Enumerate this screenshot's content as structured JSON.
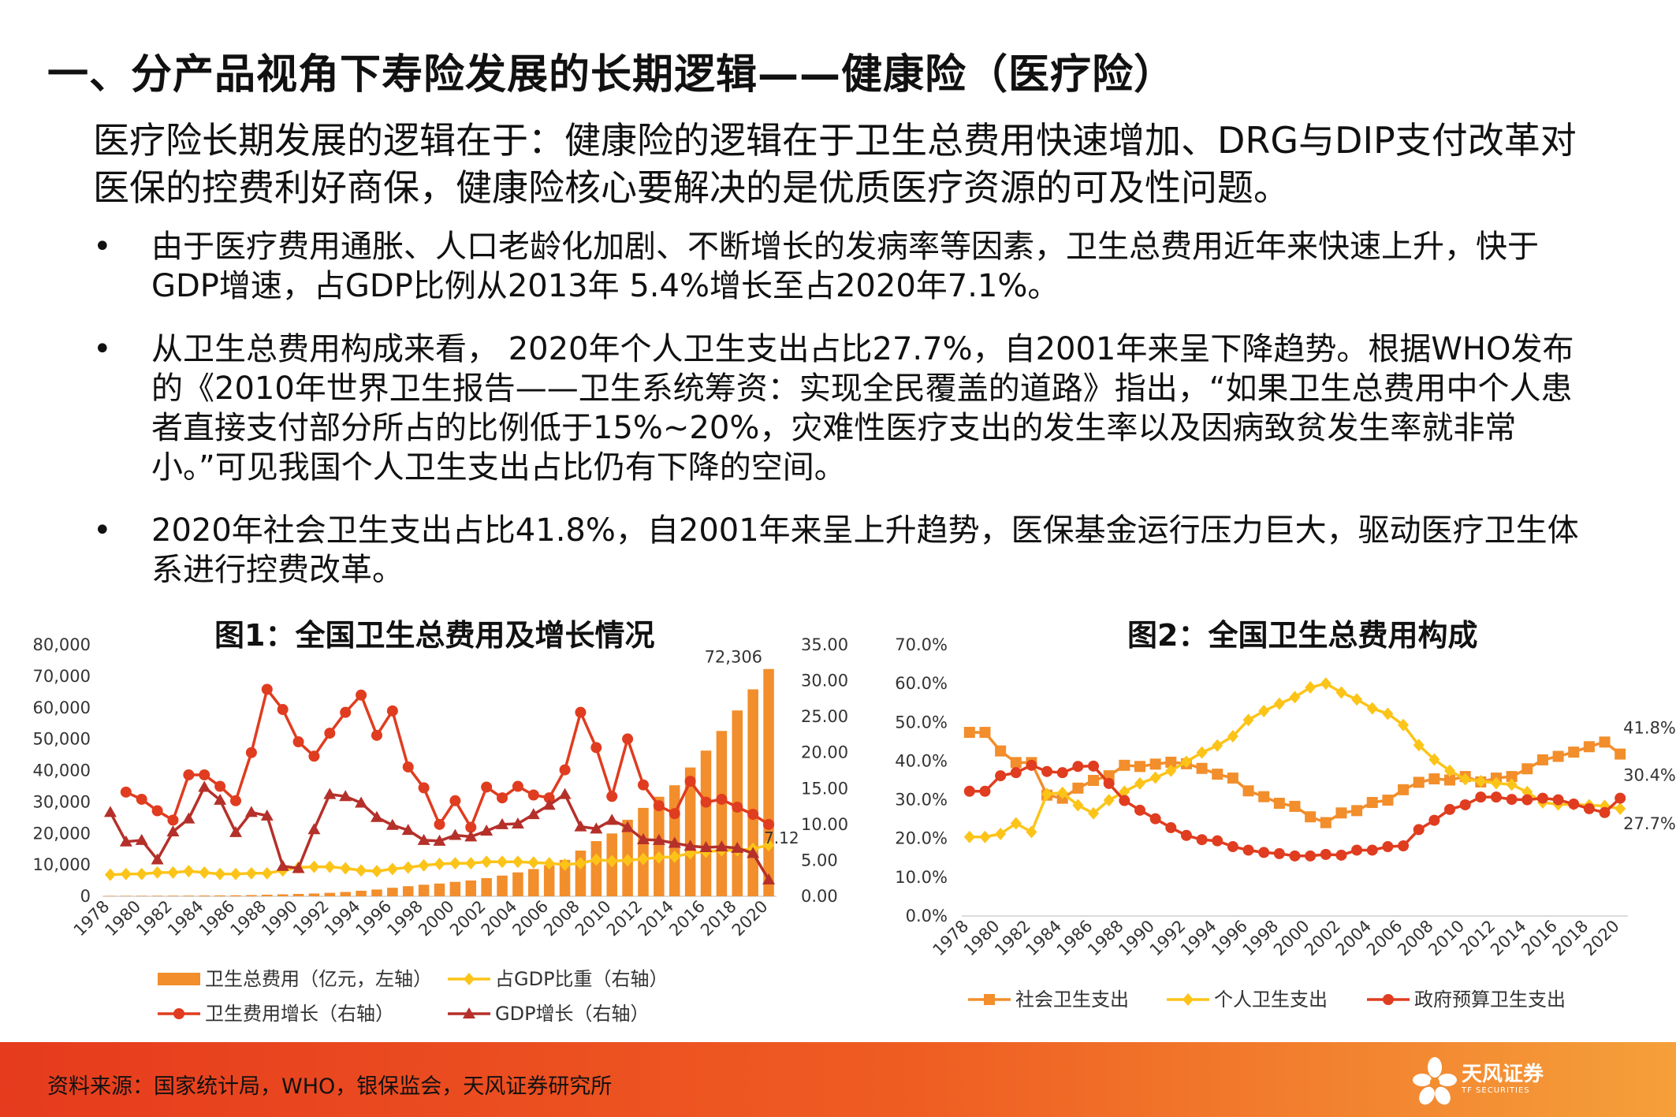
{
  "page": {
    "title": "一、分产品视角下寿险发展的长期逻辑——健康险（医疗险）",
    "lead": "医疗险长期发展的逻辑在于：健康险的逻辑在于卫生总费用快速增加、DRG与DIP支付改革对医保的控费利好商保，健康险核心要解决的是优质医疗资源的可及性问题。",
    "bullet_symbol": "•",
    "bullets": [
      "由于医疗费用通胀、人口老龄化加剧、不断增长的发病率等因素，卫生总费用近年来快速上升，快于GDP增速，占GDP比例从2013年 5.4%增长至占2020年7.1%。",
      "从卫生总费用构成来看， 2020年个人卫生支出占比27.7%，自2001年来呈下降趋势。根据WHO发布的《2010年世界卫生报告——卫生系统筹资：实现全民覆盖的道路》指出，“如果卫生总费用中个人患者直接支付部分所占的比例低于15%~20%，灾难性医疗支出的发生率以及因病致贫发生率就非常小。”可见我国个人卫生支出占比仍有下降的空间。",
      "2020年社会卫生支出占比41.8%，自2001年来呈上升趋势，医保基金运行压力巨大，驱动医疗卫生体系进行控费改革。"
    ]
  },
  "footer": {
    "source": "资料来源：国家统计局，WHO，银保监会，天风证券研究所",
    "brand_name": "天风证券",
    "brand_sub": "TF SECURITIES"
  },
  "colors": {
    "orange": "#f28e2b",
    "yellow": "#fcc419",
    "red": "#e03c1f",
    "darkred": "#b5302a",
    "footer": "#e84a1f"
  },
  "chart_data": [
    {
      "type": "bar",
      "title": "图1：全国卫生总费用及增长情况",
      "x": [
        1978,
        1979,
        1980,
        1981,
        1982,
        1983,
        1984,
        1985,
        1986,
        1987,
        1988,
        1989,
        1990,
        1991,
        1992,
        1993,
        1994,
        1995,
        1996,
        1997,
        1998,
        1999,
        2000,
        2001,
        2002,
        2003,
        2004,
        2005,
        2006,
        2007,
        2008,
        2009,
        2010,
        2011,
        2012,
        2013,
        2014,
        2015,
        2016,
        2017,
        2018,
        2019,
        2020
      ],
      "x_tick_labels": [
        "1978",
        "1980",
        "1982",
        "1984",
        "1986",
        "1988",
        "1990",
        "1992",
        "1994",
        "1996",
        "1998",
        "2000",
        "2002",
        "2004",
        "2006",
        "2008",
        "2010",
        "2012",
        "2014",
        "2016",
        "2018",
        "2020"
      ],
      "ylim_left": [
        0,
        80000
      ],
      "yticks_left": [
        "80,000",
        "70,000",
        "60,000",
        "50,000",
        "40,000",
        "30,000",
        "20,000",
        "10,000",
        "0"
      ],
      "ylim_right": [
        0,
        35
      ],
      "yticks_right": [
        "35.00",
        "30.00",
        "25.00",
        "20.00",
        "15.00",
        "10.00",
        "5.00",
        "0.00"
      ],
      "series": [
        {
          "name": "卫生总费用（亿元，左轴）",
          "type": "bar",
          "axis": "left",
          "color": "#f28e2b",
          "values": [
            110,
            126,
            143,
            160,
            177,
            207,
            242,
            279,
            316,
            379,
            488,
            615,
            747,
            893,
            1096,
            1377,
            1761,
            2155,
            2710,
            3197,
            3679,
            4048,
            4587,
            5025,
            5790,
            6584,
            7590,
            8660,
            9843,
            11574,
            14535,
            17542,
            19980,
            24346,
            28119,
            31669,
            35312,
            40975,
            46345,
            52598,
            59122,
            65841,
            72306
          ]
        },
        {
          "name": "占GDP比重（右轴）",
          "type": "line",
          "axis": "right",
          "color": "#fcc419",
          "marker": "diamond",
          "values": [
            3.0,
            3.1,
            3.1,
            3.3,
            3.3,
            3.5,
            3.3,
            3.1,
            3.1,
            3.2,
            3.2,
            3.6,
            4.0,
            4.1,
            4.1,
            3.9,
            3.6,
            3.5,
            3.8,
            4.0,
            4.3,
            4.5,
            4.6,
            4.6,
            4.8,
            4.8,
            4.8,
            4.7,
            4.6,
            4.4,
            4.6,
            5.1,
            4.9,
            5.0,
            5.2,
            5.4,
            5.5,
            6.0,
            6.2,
            6.4,
            6.4,
            6.6,
            7.12
          ]
        },
        {
          "name": "卫生费用增长（右轴）",
          "type": "line",
          "axis": "right",
          "color": "#e03c1f",
          "marker": "circle",
          "values": [
            null,
            14.5,
            13.5,
            11.9,
            10.6,
            16.9,
            16.9,
            15.3,
            13.3,
            20.0,
            28.8,
            26.0,
            21.5,
            19.5,
            22.7,
            25.6,
            28.0,
            22.4,
            25.8,
            18.0,
            15.1,
            10.0,
            13.3,
            9.6,
            15.2,
            13.7,
            15.3,
            14.1,
            13.7,
            17.6,
            25.6,
            20.7,
            13.9,
            21.9,
            15.5,
            12.6,
            11.5,
            16.0,
            13.1,
            13.5,
            12.4,
            11.4,
            10.0
          ]
        },
        {
          "name": "GDP增长（右轴）",
          "type": "line",
          "axis": "right",
          "color": "#b5302a",
          "marker": "triangle",
          "values": [
            11.7,
            7.6,
            7.8,
            5.1,
            9.0,
            10.8,
            15.2,
            13.4,
            8.9,
            11.7,
            11.2,
            4.2,
            3.9,
            9.3,
            14.2,
            13.9,
            13.0,
            11.0,
            9.9,
            9.2,
            7.8,
            7.7,
            8.5,
            8.3,
            9.1,
            10.0,
            10.1,
            11.4,
            12.7,
            14.2,
            9.7,
            9.4,
            10.6,
            9.6,
            7.9,
            7.8,
            7.4,
            7.0,
            6.8,
            6.9,
            6.7,
            6.0,
            2.3
          ]
        }
      ],
      "annotations": [
        {
          "text": "72,306",
          "x": 2020,
          "series": 0
        },
        {
          "text": "7.12",
          "x": 2020,
          "series": 1
        }
      ],
      "legend_position": "bottom"
    },
    {
      "type": "line",
      "title": "图2：全国卫生总费用构成",
      "x": [
        1978,
        1979,
        1980,
        1981,
        1982,
        1983,
        1984,
        1985,
        1986,
        1987,
        1988,
        1989,
        1990,
        1991,
        1992,
        1993,
        1994,
        1995,
        1996,
        1997,
        1998,
        1999,
        2000,
        2001,
        2002,
        2003,
        2004,
        2005,
        2006,
        2007,
        2008,
        2009,
        2010,
        2011,
        2012,
        2013,
        2014,
        2015,
        2016,
        2017,
        2018,
        2019,
        2020
      ],
      "x_tick_labels": [
        "1978",
        "1980",
        "1982",
        "1984",
        "1986",
        "1988",
        "1990",
        "1992",
        "1994",
        "1996",
        "1998",
        "2000",
        "2002",
        "2004",
        "2006",
        "2008",
        "2010",
        "2012",
        "2014",
        "2016",
        "2018",
        "2020"
      ],
      "ylim": [
        0,
        0.7
      ],
      "yticks": [
        "70.0%",
        "60.0%",
        "50.0%",
        "40.0%",
        "30.0%",
        "20.0%",
        "10.0%",
        "0.0%"
      ],
      "series": [
        {
          "name": "社会卫生支出",
          "color": "#f28e2b",
          "marker": "square",
          "values": [
            47.4,
            47.4,
            42.6,
            39.6,
            39.6,
            31.2,
            30.4,
            33.0,
            35.0,
            36.2,
            38.9,
            38.6,
            39.2,
            39.7,
            39.3,
            38.1,
            36.6,
            35.6,
            32.3,
            30.8,
            29.1,
            28.3,
            25.6,
            24.1,
            26.6,
            27.2,
            29.3,
            29.9,
            32.6,
            34.5,
            35.4,
            35.1,
            36.0,
            34.6,
            35.6,
            36.0,
            38.0,
            40.3,
            41.2,
            42.3,
            43.7,
            44.9,
            41.8
          ]
        },
        {
          "name": "个人卫生支出",
          "color": "#fcc419",
          "marker": "diamond",
          "values": [
            20.4,
            20.4,
            21.2,
            23.9,
            21.7,
            31.5,
            31.8,
            28.6,
            26.5,
            29.9,
            32.1,
            34.2,
            35.7,
            37.5,
            39.8,
            42.2,
            44.0,
            46.4,
            50.6,
            52.9,
            54.8,
            56.5,
            59.0,
            60.0,
            57.7,
            55.9,
            53.6,
            52.2,
            49.3,
            44.1,
            40.4,
            37.5,
            35.3,
            34.8,
            34.3,
            33.9,
            31.99,
            29.3,
            28.8,
            28.8,
            28.6,
            28.4,
            27.7
          ]
        },
        {
          "name": "政府预算卫生支出",
          "color": "#e03c1f",
          "marker": "circle",
          "values": [
            32.2,
            32.2,
            36.2,
            37.0,
            38.9,
            37.3,
            37.0,
            38.6,
            38.7,
            34.2,
            29.8,
            27.3,
            25.1,
            22.8,
            20.8,
            19.7,
            19.4,
            17.9,
            17.0,
            16.4,
            16.1,
            15.5,
            15.5,
            15.9,
            15.7,
            17.0,
            17.0,
            17.9,
            18.1,
            22.3,
            24.7,
            27.5,
            28.7,
            30.7,
            30.7,
            30.1,
            30.0,
            30.4,
            30.0,
            28.9,
            27.7,
            26.7,
            30.4
          ]
        }
      ],
      "annotations": [
        {
          "text": "41.8%",
          "series": 0
        },
        {
          "text": "30.4%",
          "series": 2
        },
        {
          "text": "27.7%",
          "series": 1
        }
      ],
      "legend_position": "bottom"
    }
  ]
}
